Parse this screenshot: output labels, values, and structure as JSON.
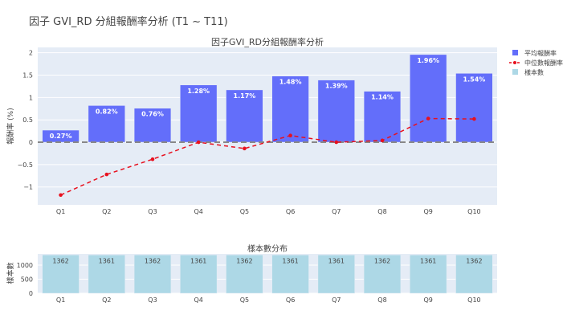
{
  "page_title": "因子 GVI_RD 分組報酬率分析 (T1 ~ T11)",
  "chart_data": [
    {
      "type": "bar",
      "title": "因子GVI_RD分組報酬率分析",
      "xlabel": "",
      "ylabel": "報酬率 (%)",
      "categories": [
        "Q1",
        "Q2",
        "Q3",
        "Q4",
        "Q5",
        "Q6",
        "Q7",
        "Q8",
        "Q9",
        "Q10"
      ],
      "ylim": [
        -1.4,
        2.12
      ],
      "yticks": [
        -1,
        -0.5,
        0,
        0.5,
        1,
        1.5,
        2
      ],
      "ytick_labels": [
        "−1",
        "−0.5",
        "0",
        "0.5",
        "1",
        "1.5",
        "2"
      ],
      "grid": true,
      "zero_line": "dashed gray",
      "legend_position": "right",
      "series": [
        {
          "name": "平均報酬率",
          "type": "bar",
          "color": "#636efa",
          "values": [
            0.27,
            0.82,
            0.76,
            1.28,
            1.17,
            1.48,
            1.39,
            1.14,
            1.96,
            1.54
          ],
          "labels": [
            "0.27%",
            "0.82%",
            "0.76%",
            "1.28%",
            "1.17%",
            "1.48%",
            "1.39%",
            "1.14%",
            "1.96%",
            "1.54%"
          ]
        },
        {
          "name": "中位數報酬率",
          "type": "line",
          "style": "dashed",
          "color": "#e8101e",
          "values": [
            -1.18,
            -0.72,
            -0.38,
            0.0,
            -0.14,
            0.15,
            0.0,
            0.04,
            0.53,
            0.52
          ]
        }
      ]
    },
    {
      "type": "bar",
      "title": "樣本數分布",
      "ylabel": "樣本數",
      "categories": [
        "Q1",
        "Q2",
        "Q3",
        "Q4",
        "Q5",
        "Q6",
        "Q7",
        "Q8",
        "Q9",
        "Q10"
      ],
      "ylim": [
        0,
        1400
      ],
      "yticks": [
        0,
        500,
        1000
      ],
      "ytick_labels": [
        "0",
        "500",
        "1000"
      ],
      "series": [
        {
          "name": "樣本數",
          "color": "#add8e6",
          "values": [
            1362,
            1361,
            1362,
            1361,
            1362,
            1361,
            1361,
            1362,
            1361,
            1362
          ],
          "labels": [
            "1362",
            "1361",
            "1362",
            "1361",
            "1362",
            "1361",
            "1361",
            "1362",
            "1361",
            "1362"
          ]
        }
      ]
    }
  ]
}
